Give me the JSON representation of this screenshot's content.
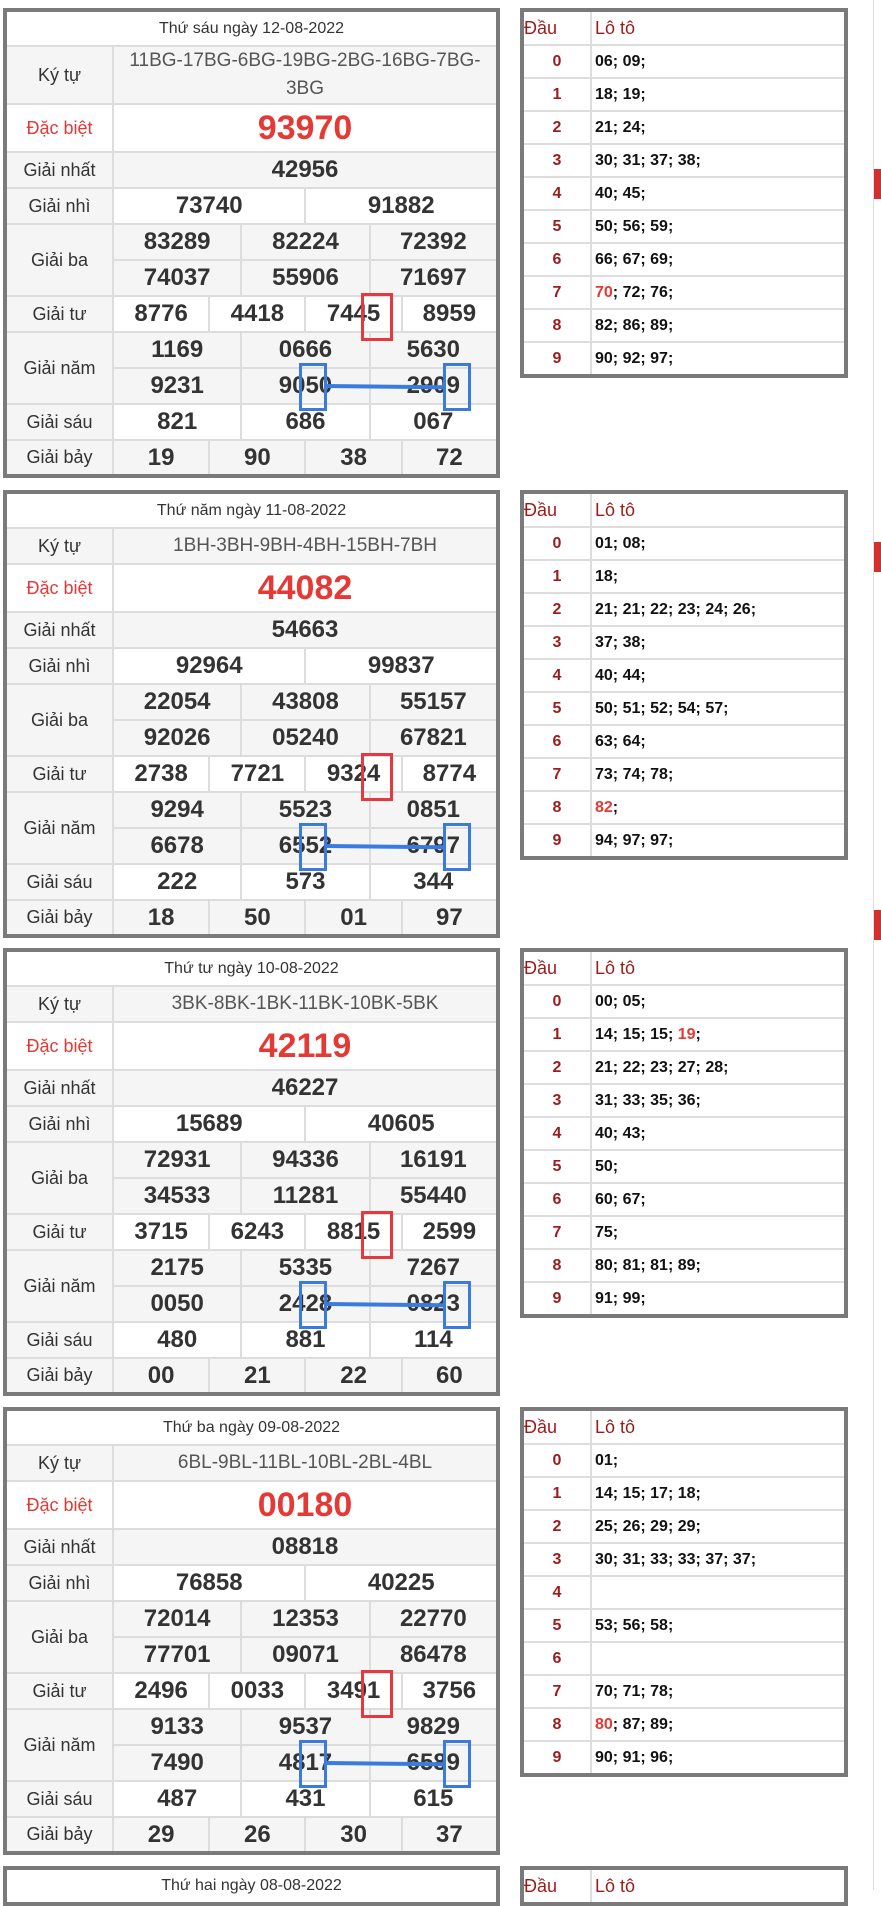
{
  "labels": {
    "ky_tu": "Ký tự",
    "dac_biet": "Đặc biệt",
    "nhat": "Giải nhất",
    "nhi": "Giải nhì",
    "ba": "Giải ba",
    "tu": "Giải tư",
    "nam": "Giải năm",
    "sau": "Giải sáu",
    "bay": "Giải bảy",
    "dau": "Đầu",
    "loto": "Lô tô"
  },
  "colors": {
    "special": "#e53935",
    "highlight_red": "#e53940",
    "highlight_blue": "#3a7be0",
    "dau": "#9b1c1c"
  },
  "days": [
    {
      "title": "Thứ sáu ngày 12-08-2022",
      "ky_tu": "11BG-17BG-6BG-19BG-2BG-16BG-7BG-3BG",
      "dac_biet": "93970",
      "nhat": "42956",
      "nhi": [
        "73740",
        "91882"
      ],
      "ba": [
        "83289",
        "82224",
        "72392",
        "74037",
        "55906",
        "71697"
      ],
      "tu": [
        "8776",
        "4418",
        "7445",
        "8959"
      ],
      "nam": [
        "1169",
        "0666",
        "5630",
        "9231",
        "9050",
        "2909"
      ],
      "sau": [
        "821",
        "686",
        "067"
      ],
      "bay": [
        "19",
        "90",
        "38",
        "72"
      ],
      "loto": [
        {
          "dau": "0",
          "items": [
            "06",
            "09"
          ]
        },
        {
          "dau": "1",
          "items": [
            "18",
            "19"
          ]
        },
        {
          "dau": "2",
          "items": [
            "21",
            "24"
          ]
        },
        {
          "dau": "3",
          "items": [
            "30",
            "31",
            "37",
            "38"
          ]
        },
        {
          "dau": "4",
          "items": [
            "40",
            "45"
          ]
        },
        {
          "dau": "5",
          "items": [
            "50",
            "56",
            "59"
          ]
        },
        {
          "dau": "6",
          "items": [
            "66",
            "67",
            "69"
          ]
        },
        {
          "dau": "7",
          "items": [
            "70",
            "72",
            "76"
          ],
          "special": "70"
        },
        {
          "dau": "8",
          "items": [
            "82",
            "86",
            "89"
          ]
        },
        {
          "dau": "9",
          "items": [
            "90",
            "92",
            "97"
          ]
        }
      ]
    },
    {
      "title": "Thứ năm ngày 11-08-2022",
      "ky_tu": "1BH-3BH-9BH-4BH-15BH-7BH",
      "dac_biet": "44082",
      "nhat": "54663",
      "nhi": [
        "92964",
        "99837"
      ],
      "ba": [
        "22054",
        "43808",
        "55157",
        "92026",
        "05240",
        "67821"
      ],
      "tu": [
        "2738",
        "7721",
        "9324",
        "8774"
      ],
      "nam": [
        "9294",
        "5523",
        "0851",
        "6678",
        "6552",
        "6797"
      ],
      "sau": [
        "222",
        "573",
        "344"
      ],
      "bay": [
        "18",
        "50",
        "01",
        "97"
      ],
      "loto": [
        {
          "dau": "0",
          "items": [
            "01",
            "08"
          ]
        },
        {
          "dau": "1",
          "items": [
            "18"
          ]
        },
        {
          "dau": "2",
          "items": [
            "21",
            "21",
            "22",
            "23",
            "24",
            "26"
          ]
        },
        {
          "dau": "3",
          "items": [
            "37",
            "38"
          ]
        },
        {
          "dau": "4",
          "items": [
            "40",
            "44"
          ]
        },
        {
          "dau": "5",
          "items": [
            "50",
            "51",
            "52",
            "54",
            "57"
          ]
        },
        {
          "dau": "6",
          "items": [
            "63",
            "64"
          ]
        },
        {
          "dau": "7",
          "items": [
            "73",
            "74",
            "78"
          ]
        },
        {
          "dau": "8",
          "items": [
            "82"
          ],
          "special": "82"
        },
        {
          "dau": "9",
          "items": [
            "94",
            "97",
            "97"
          ]
        }
      ]
    },
    {
      "title": "Thứ tư ngày 10-08-2022",
      "ky_tu": "3BK-8BK-1BK-11BK-10BK-5BK",
      "dac_biet": "42119",
      "nhat": "46227",
      "nhi": [
        "15689",
        "40605"
      ],
      "ba": [
        "72931",
        "94336",
        "16191",
        "34533",
        "11281",
        "55440"
      ],
      "tu": [
        "3715",
        "6243",
        "8815",
        "2599"
      ],
      "nam": [
        "2175",
        "5335",
        "7267",
        "0050",
        "2428",
        "0823"
      ],
      "sau": [
        "480",
        "881",
        "114"
      ],
      "bay": [
        "00",
        "21",
        "22",
        "60"
      ],
      "loto": [
        {
          "dau": "0",
          "items": [
            "00",
            "05"
          ]
        },
        {
          "dau": "1",
          "items": [
            "14",
            "15",
            "15",
            "19"
          ],
          "special": "19"
        },
        {
          "dau": "2",
          "items": [
            "21",
            "22",
            "23",
            "27",
            "28"
          ]
        },
        {
          "dau": "3",
          "items": [
            "31",
            "33",
            "35",
            "36"
          ]
        },
        {
          "dau": "4",
          "items": [
            "40",
            "43"
          ]
        },
        {
          "dau": "5",
          "items": [
            "50"
          ]
        },
        {
          "dau": "6",
          "items": [
            "60",
            "67"
          ]
        },
        {
          "dau": "7",
          "items": [
            "75"
          ]
        },
        {
          "dau": "8",
          "items": [
            "80",
            "81",
            "81",
            "89"
          ]
        },
        {
          "dau": "9",
          "items": [
            "91",
            "99"
          ]
        }
      ]
    },
    {
      "title": "Thứ ba ngày 09-08-2022",
      "ky_tu": "6BL-9BL-11BL-10BL-2BL-4BL",
      "dac_biet": "00180",
      "nhat": "08818",
      "nhi": [
        "76858",
        "40225"
      ],
      "ba": [
        "72014",
        "12353",
        "22770",
        "77701",
        "09071",
        "86478"
      ],
      "tu": [
        "2496",
        "0033",
        "3491",
        "3756"
      ],
      "nam": [
        "9133",
        "9537",
        "9829",
        "7490",
        "4817",
        "6589"
      ],
      "sau": [
        "487",
        "431",
        "615"
      ],
      "bay": [
        "29",
        "26",
        "30",
        "37"
      ],
      "loto": [
        {
          "dau": "0",
          "items": [
            "01"
          ]
        },
        {
          "dau": "1",
          "items": [
            "14",
            "15",
            "17",
            "18"
          ]
        },
        {
          "dau": "2",
          "items": [
            "25",
            "26",
            "29",
            "29"
          ]
        },
        {
          "dau": "3",
          "items": [
            "30",
            "31",
            "33",
            "33",
            "37",
            "37"
          ]
        },
        {
          "dau": "4",
          "items": []
        },
        {
          "dau": "5",
          "items": [
            "53",
            "56",
            "58"
          ]
        },
        {
          "dau": "6",
          "items": []
        },
        {
          "dau": "7",
          "items": [
            "70",
            "71",
            "78"
          ]
        },
        {
          "dau": "8",
          "items": [
            "80",
            "87",
            "89"
          ],
          "special": "80"
        },
        {
          "dau": "9",
          "items": [
            "90",
            "91",
            "96"
          ]
        }
      ]
    },
    {
      "title": "Thứ hai ngày 08-08-2022",
      "partial": true
    }
  ]
}
